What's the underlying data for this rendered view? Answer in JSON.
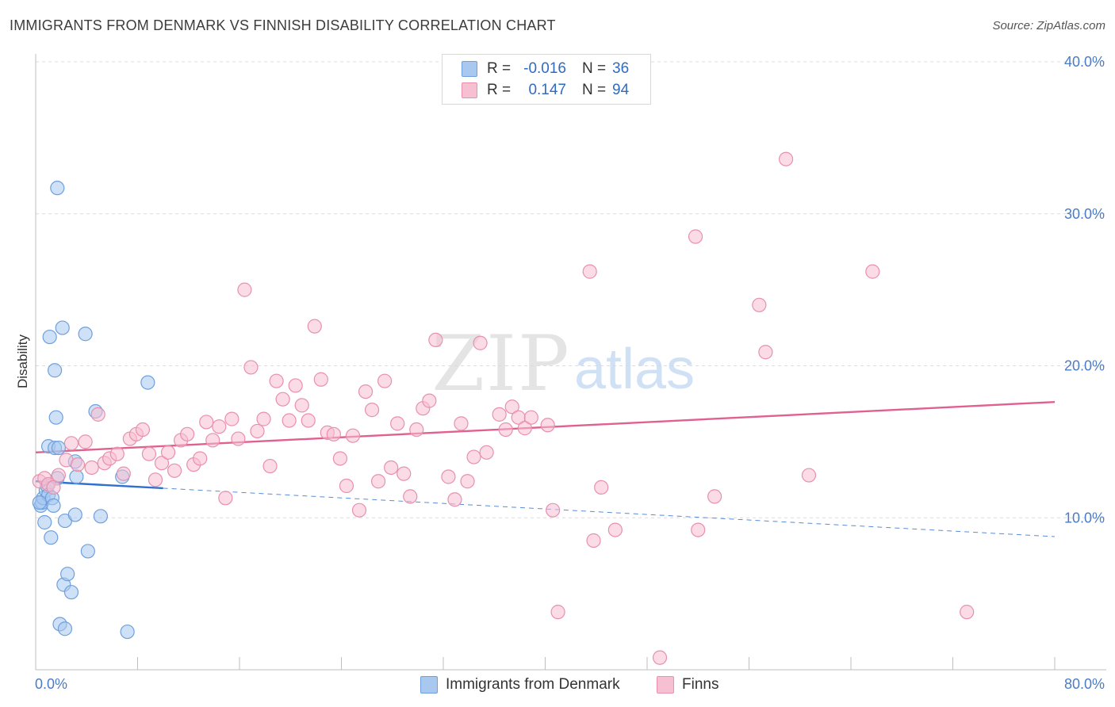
{
  "title": "IMMIGRANTS FROM DENMARK VS FINNISH DISABILITY CORRELATION CHART",
  "source": "Source: ZipAtlas.com",
  "watermark": {
    "zip": "ZIP",
    "atlas": "atlas"
  },
  "legend": {
    "rows": [
      {
        "r_label": "R =",
        "r_value": "-0.016",
        "n_label": "N =",
        "n_value": "36",
        "color": "#a8c8f0",
        "stroke": "#6fa0dc"
      },
      {
        "r_label": "R =",
        "r_value": "0.147",
        "n_label": "N =",
        "n_value": "94",
        "color": "#f7c0d2",
        "stroke": "#e890ac"
      }
    ]
  },
  "bottom_legend": [
    {
      "label": "Immigrants from Denmark",
      "color": "#a8c8f0",
      "stroke": "#6fa0dc"
    },
    {
      "label": "Finns",
      "color": "#f7c0d2",
      "stroke": "#e890ac"
    }
  ],
  "chart_data": {
    "type": "scatter",
    "title": "IMMIGRANTS FROM DENMARK VS FINNISH DISABILITY CORRELATION CHART",
    "xlabel": "",
    "ylabel": "Disability",
    "xlim": [
      0,
      80
    ],
    "ylim": [
      0,
      40
    ],
    "x_tick_labels": [
      "0.0%",
      "80.0%"
    ],
    "y_ticks": [
      10,
      20,
      30,
      40
    ],
    "y_tick_labels": [
      "10.0%",
      "20.0%",
      "30.0%",
      "40.0%"
    ],
    "grid": true,
    "legend_position": "top-center",
    "series": [
      {
        "name": "Immigrants from Denmark",
        "color": "#6fa0dc",
        "fill": "#a8c8f0",
        "trend": {
          "solid_x": [
            0,
            10
          ],
          "dashed_x": [
            10,
            80
          ],
          "y_at_0": 12.4,
          "slope": -0.0455,
          "color": "#2f6fd0"
        },
        "points": [
          [
            0.4,
            10.8
          ],
          [
            0.5,
            11.0
          ],
          [
            0.6,
            11.3
          ],
          [
            0.7,
            9.7
          ],
          [
            0.8,
            11.8
          ],
          [
            0.9,
            12.1
          ],
          [
            1.0,
            14.7
          ],
          [
            1.0,
            11.5
          ],
          [
            1.1,
            21.9
          ],
          [
            1.2,
            8.7
          ],
          [
            1.3,
            11.3
          ],
          [
            1.4,
            10.8
          ],
          [
            1.5,
            14.6
          ],
          [
            1.5,
            19.7
          ],
          [
            1.6,
            16.6
          ],
          [
            1.7,
            12.6
          ],
          [
            1.7,
            31.7
          ],
          [
            1.8,
            14.6
          ],
          [
            1.9,
            3.0
          ],
          [
            2.1,
            22.5
          ],
          [
            2.2,
            5.6
          ],
          [
            2.3,
            9.8
          ],
          [
            2.3,
            2.7
          ],
          [
            2.5,
            6.3
          ],
          [
            2.8,
            5.1
          ],
          [
            3.1,
            13.7
          ],
          [
            3.1,
            10.2
          ],
          [
            3.2,
            12.7
          ],
          [
            3.9,
            22.1
          ],
          [
            4.1,
            7.8
          ],
          [
            4.7,
            17.0
          ],
          [
            5.1,
            10.1
          ],
          [
            6.8,
            12.7
          ],
          [
            7.2,
            2.5
          ],
          [
            8.8,
            18.9
          ],
          [
            0.3,
            11.0
          ]
        ]
      },
      {
        "name": "Finns",
        "color": "#e890ac",
        "fill": "#f7c0d2",
        "trend": {
          "solid_x": [
            0,
            80
          ],
          "y_at_0": 14.3,
          "slope": 0.0415,
          "color": "#e06090"
        },
        "points": [
          [
            0.3,
            12.4
          ],
          [
            0.7,
            12.6
          ],
          [
            1.0,
            12.2
          ],
          [
            1.4,
            12.0
          ],
          [
            1.8,
            12.8
          ],
          [
            2.4,
            13.8
          ],
          [
            2.8,
            14.9
          ],
          [
            3.3,
            13.5
          ],
          [
            3.9,
            15.0
          ],
          [
            4.4,
            13.3
          ],
          [
            4.9,
            16.8
          ],
          [
            5.4,
            13.6
          ],
          [
            5.8,
            13.9
          ],
          [
            6.4,
            14.2
          ],
          [
            6.9,
            12.9
          ],
          [
            7.4,
            15.2
          ],
          [
            7.9,
            15.5
          ],
          [
            8.4,
            15.8
          ],
          [
            8.9,
            14.2
          ],
          [
            9.4,
            12.5
          ],
          [
            9.9,
            13.6
          ],
          [
            10.4,
            14.3
          ],
          [
            10.9,
            13.1
          ],
          [
            11.4,
            15.1
          ],
          [
            11.9,
            15.5
          ],
          [
            12.4,
            13.5
          ],
          [
            12.9,
            13.9
          ],
          [
            13.4,
            16.3
          ],
          [
            13.9,
            15.1
          ],
          [
            14.4,
            16.0
          ],
          [
            14.9,
            11.3
          ],
          [
            15.4,
            16.5
          ],
          [
            15.9,
            15.2
          ],
          [
            16.4,
            25.0
          ],
          [
            16.9,
            19.9
          ],
          [
            17.4,
            15.7
          ],
          [
            17.9,
            16.5
          ],
          [
            18.4,
            13.4
          ],
          [
            18.9,
            19.0
          ],
          [
            19.4,
            17.8
          ],
          [
            19.9,
            16.4
          ],
          [
            20.4,
            18.7
          ],
          [
            20.9,
            17.4
          ],
          [
            21.4,
            16.4
          ],
          [
            21.9,
            22.6
          ],
          [
            22.4,
            19.1
          ],
          [
            22.9,
            15.6
          ],
          [
            23.4,
            15.5
          ],
          [
            23.9,
            13.9
          ],
          [
            24.4,
            12.1
          ],
          [
            24.9,
            15.4
          ],
          [
            25.4,
            10.5
          ],
          [
            25.9,
            18.3
          ],
          [
            26.4,
            17.1
          ],
          [
            26.9,
            12.4
          ],
          [
            27.4,
            19.0
          ],
          [
            27.9,
            13.3
          ],
          [
            28.4,
            16.2
          ],
          [
            28.9,
            12.9
          ],
          [
            29.4,
            11.4
          ],
          [
            29.9,
            15.8
          ],
          [
            30.4,
            17.2
          ],
          [
            30.9,
            17.7
          ],
          [
            31.4,
            21.7
          ],
          [
            32.4,
            12.7
          ],
          [
            32.9,
            11.2
          ],
          [
            33.4,
            16.2
          ],
          [
            33.9,
            12.4
          ],
          [
            34.4,
            14.0
          ],
          [
            34.9,
            21.5
          ],
          [
            35.4,
            14.3
          ],
          [
            36.4,
            16.8
          ],
          [
            36.9,
            15.8
          ],
          [
            37.4,
            17.3
          ],
          [
            37.9,
            16.6
          ],
          [
            38.4,
            15.9
          ],
          [
            38.9,
            16.6
          ],
          [
            40.2,
            16.1
          ],
          [
            40.6,
            10.5
          ],
          [
            41.0,
            3.8
          ],
          [
            43.5,
            26.2
          ],
          [
            43.8,
            8.5
          ],
          [
            44.4,
            12.0
          ],
          [
            45.5,
            9.2
          ],
          [
            49.0,
            0.8
          ],
          [
            51.8,
            28.5
          ],
          [
            52.0,
            9.2
          ],
          [
            53.3,
            11.4
          ],
          [
            56.8,
            24.0
          ],
          [
            57.3,
            20.9
          ],
          [
            58.9,
            33.6
          ],
          [
            60.7,
            12.8
          ],
          [
            65.7,
            26.2
          ],
          [
            73.1,
            3.8
          ]
        ]
      }
    ]
  }
}
